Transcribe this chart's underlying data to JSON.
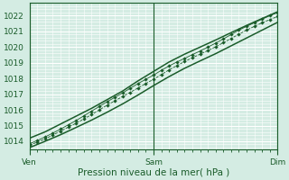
{
  "xlabel": "Pression niveau de la mer( hPa )",
  "bg_color": "#d4ece3",
  "grid_color": "#ffffff",
  "line_color": "#1a5c2a",
  "ylim": [
    1013.5,
    1022.8
  ],
  "xlim": [
    0,
    96
  ],
  "yticks": [
    1014,
    1015,
    1016,
    1017,
    1018,
    1019,
    1020,
    1021,
    1022
  ],
  "xtick_positions": [
    0,
    48,
    96
  ],
  "xtick_labels": [
    "Ven",
    "Sam",
    "Dim"
  ],
  "line1_x": [
    0,
    3,
    6,
    9,
    12,
    15,
    18,
    21,
    24,
    27,
    30,
    33,
    36,
    39,
    42,
    45,
    48,
    51,
    54,
    57,
    60,
    63,
    66,
    69,
    72,
    75,
    78,
    81,
    84,
    87,
    90,
    93,
    96
  ],
  "line1_y": [
    1013.75,
    1013.95,
    1014.15,
    1014.4,
    1014.65,
    1014.9,
    1015.15,
    1015.42,
    1015.7,
    1016.0,
    1016.3,
    1016.58,
    1016.85,
    1017.12,
    1017.4,
    1017.68,
    1017.95,
    1018.25,
    1018.55,
    1018.82,
    1019.08,
    1019.32,
    1019.55,
    1019.78,
    1020.02,
    1020.28,
    1020.55,
    1020.82,
    1021.08,
    1021.32,
    1021.55,
    1021.75,
    1021.95
  ],
  "line2_x": [
    0,
    3,
    6,
    9,
    12,
    15,
    18,
    21,
    24,
    27,
    30,
    33,
    36,
    39,
    42,
    45,
    48,
    51,
    54,
    57,
    60,
    63,
    66,
    69,
    72,
    75,
    78,
    81,
    84,
    87,
    90,
    93,
    96
  ],
  "line2_y": [
    1013.85,
    1014.05,
    1014.28,
    1014.52,
    1014.78,
    1015.05,
    1015.32,
    1015.62,
    1015.92,
    1016.22,
    1016.52,
    1016.8,
    1017.08,
    1017.38,
    1017.68,
    1017.95,
    1018.22,
    1018.52,
    1018.8,
    1019.05,
    1019.28,
    1019.52,
    1019.75,
    1020.0,
    1020.25,
    1020.52,
    1020.8,
    1021.08,
    1021.32,
    1021.55,
    1021.78,
    1022.0,
    1022.2
  ],
  "line3_x": [
    0,
    6,
    12,
    18,
    24,
    30,
    36,
    42,
    48,
    54,
    60,
    66,
    72,
    78,
    84,
    90,
    96
  ],
  "line3_y": [
    1014.2,
    1014.6,
    1015.1,
    1015.6,
    1016.1,
    1016.65,
    1017.2,
    1017.85,
    1018.45,
    1019.05,
    1019.55,
    1020.0,
    1020.45,
    1020.92,
    1021.38,
    1021.82,
    1022.25
  ],
  "line4_x": [
    0,
    6,
    12,
    18,
    24,
    30,
    36,
    42,
    48,
    54,
    60,
    66,
    72,
    78,
    84,
    90,
    96
  ],
  "line4_y": [
    1013.6,
    1014.0,
    1014.42,
    1014.88,
    1015.35,
    1015.85,
    1016.38,
    1016.95,
    1017.55,
    1018.12,
    1018.65,
    1019.12,
    1019.58,
    1020.08,
    1020.58,
    1021.08,
    1021.58
  ]
}
